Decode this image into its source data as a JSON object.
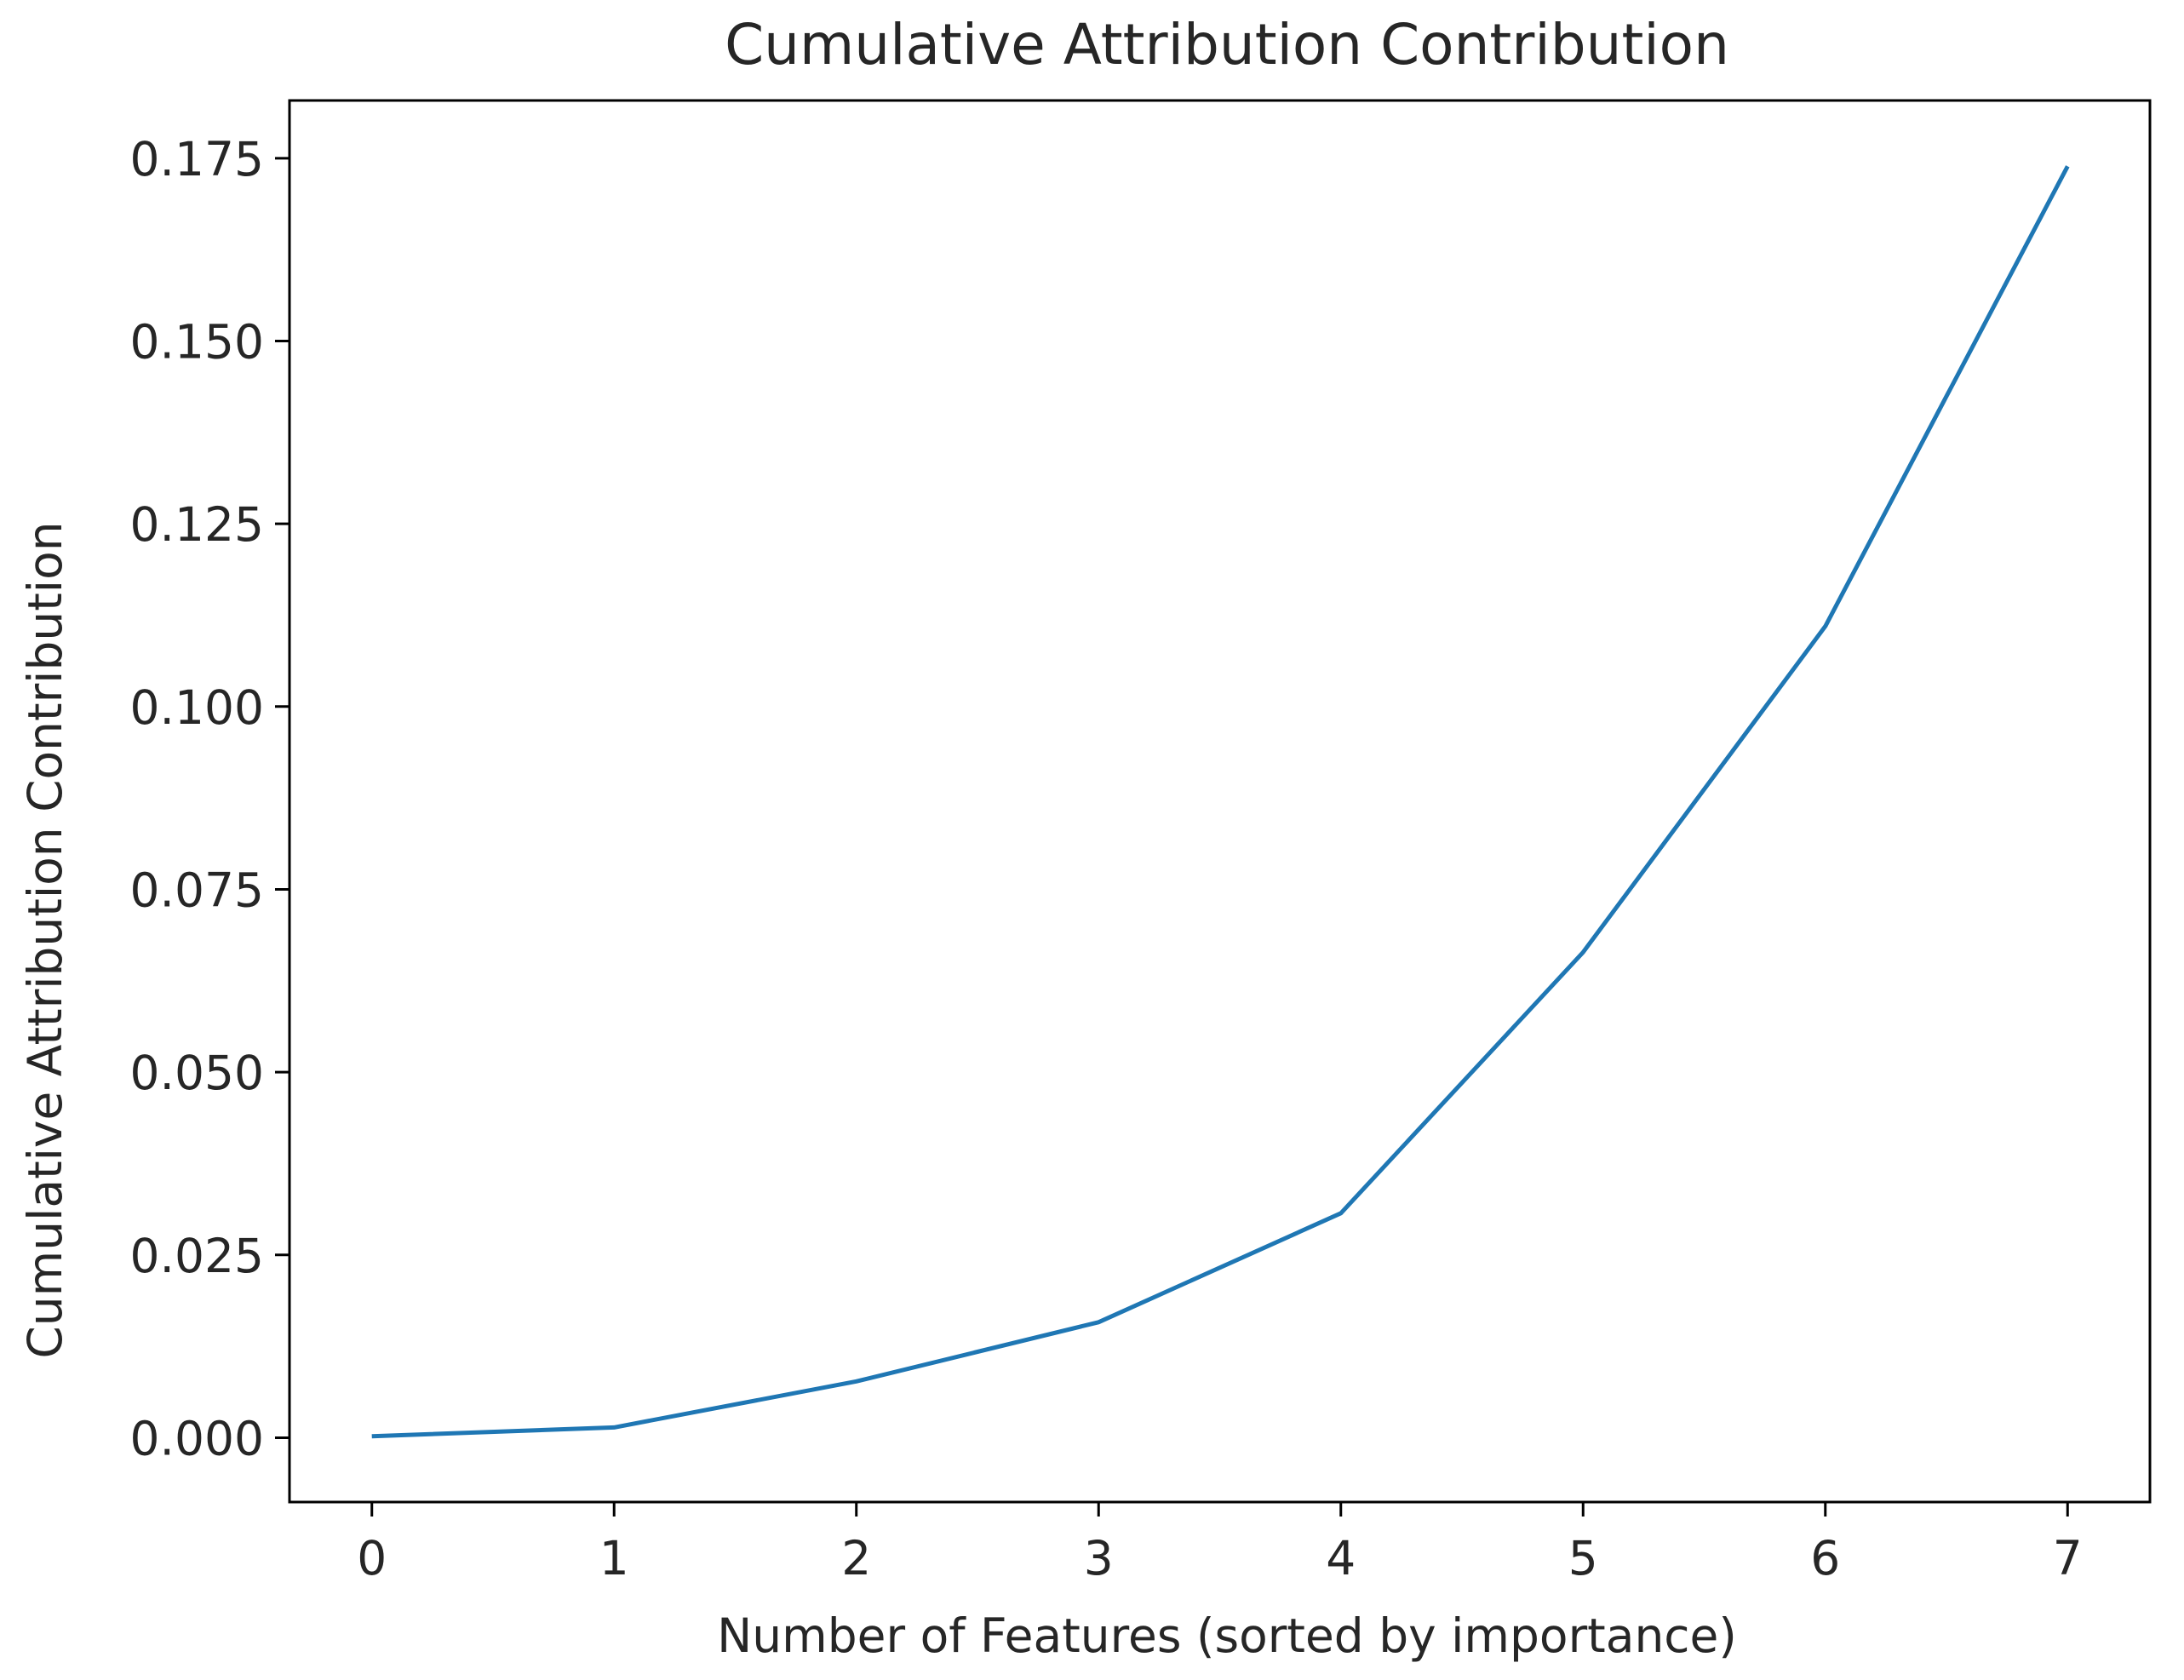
{
  "chart_data": {
    "type": "line",
    "title": "Cumulative Attribution Contribution",
    "xlabel": "Number of Features (sorted by importance)",
    "ylabel": "Cumulative Attribution Contribution",
    "x": [
      0,
      1,
      2,
      3,
      4,
      5,
      6,
      7
    ],
    "series": [
      {
        "values": [
          0.0002,
          0.0014,
          0.0077,
          0.0158,
          0.0307,
          0.0664,
          0.111,
          0.1739
        ]
      }
    ],
    "xticks": [
      "0",
      "1",
      "2",
      "3",
      "4",
      "5",
      "6",
      "7"
    ],
    "yticks": [
      "0.000",
      "0.025",
      "0.050",
      "0.075",
      "0.100",
      "0.125",
      "0.150",
      "0.175"
    ],
    "xlim": [
      -0.34,
      7.34
    ],
    "ylim": [
      -0.0088,
      0.1829
    ],
    "grid": false,
    "legend": "none",
    "colors": {
      "line": "#1f77b4",
      "axes": "#000000",
      "text": "#262626"
    }
  }
}
